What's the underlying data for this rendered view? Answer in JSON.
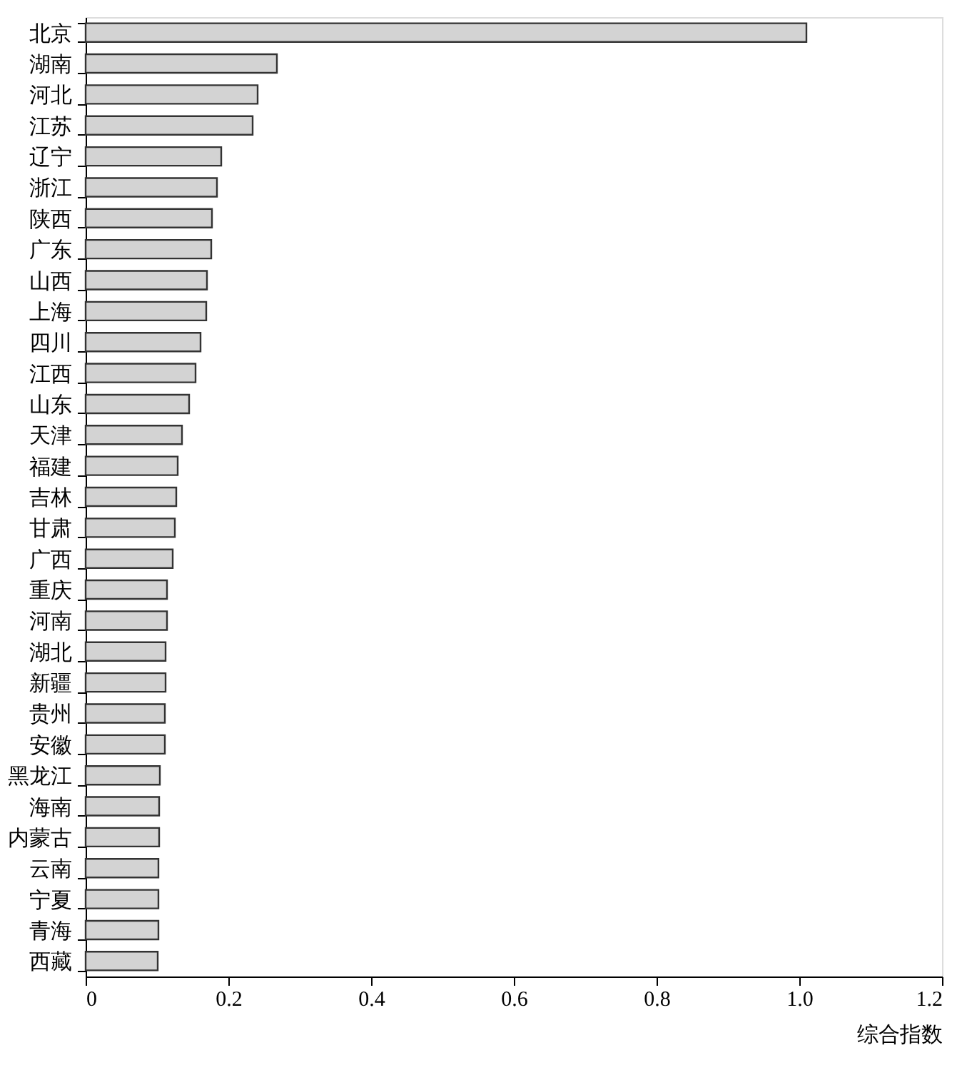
{
  "chart_data": {
    "type": "bar",
    "orientation": "horizontal",
    "xlabel": "综合指数",
    "categories": [
      "北京",
      "湖南",
      "河北",
      "江苏",
      "辽宁",
      "浙江",
      "陕西",
      "广东",
      "山西",
      "上海",
      "四川",
      "江西",
      "山东",
      "天津",
      "福建",
      "吉林",
      "甘肃",
      "广西",
      "重庆",
      "河南",
      "湖北",
      "新疆",
      "贵州",
      "安徽",
      "黑龙江",
      "海南",
      "内蒙古",
      "云南",
      "宁夏",
      "青海",
      "西藏"
    ],
    "values": [
      1.01,
      0.268,
      0.241,
      0.234,
      0.19,
      0.184,
      0.177,
      0.176,
      0.17,
      0.169,
      0.161,
      0.154,
      0.145,
      0.135,
      0.129,
      0.127,
      0.125,
      0.122,
      0.114,
      0.114,
      0.112,
      0.112,
      0.111,
      0.111,
      0.104,
      0.103,
      0.103,
      0.102,
      0.102,
      0.102,
      0.101
    ],
    "color": "#d3d3d3",
    "xlim": [
      0,
      1.2
    ],
    "xticks": [
      0,
      0.2,
      0.4,
      0.6,
      0.8,
      {
        "value": 1.0,
        "label": "1.0"
      },
      1.2
    ],
    "grid": false
  }
}
